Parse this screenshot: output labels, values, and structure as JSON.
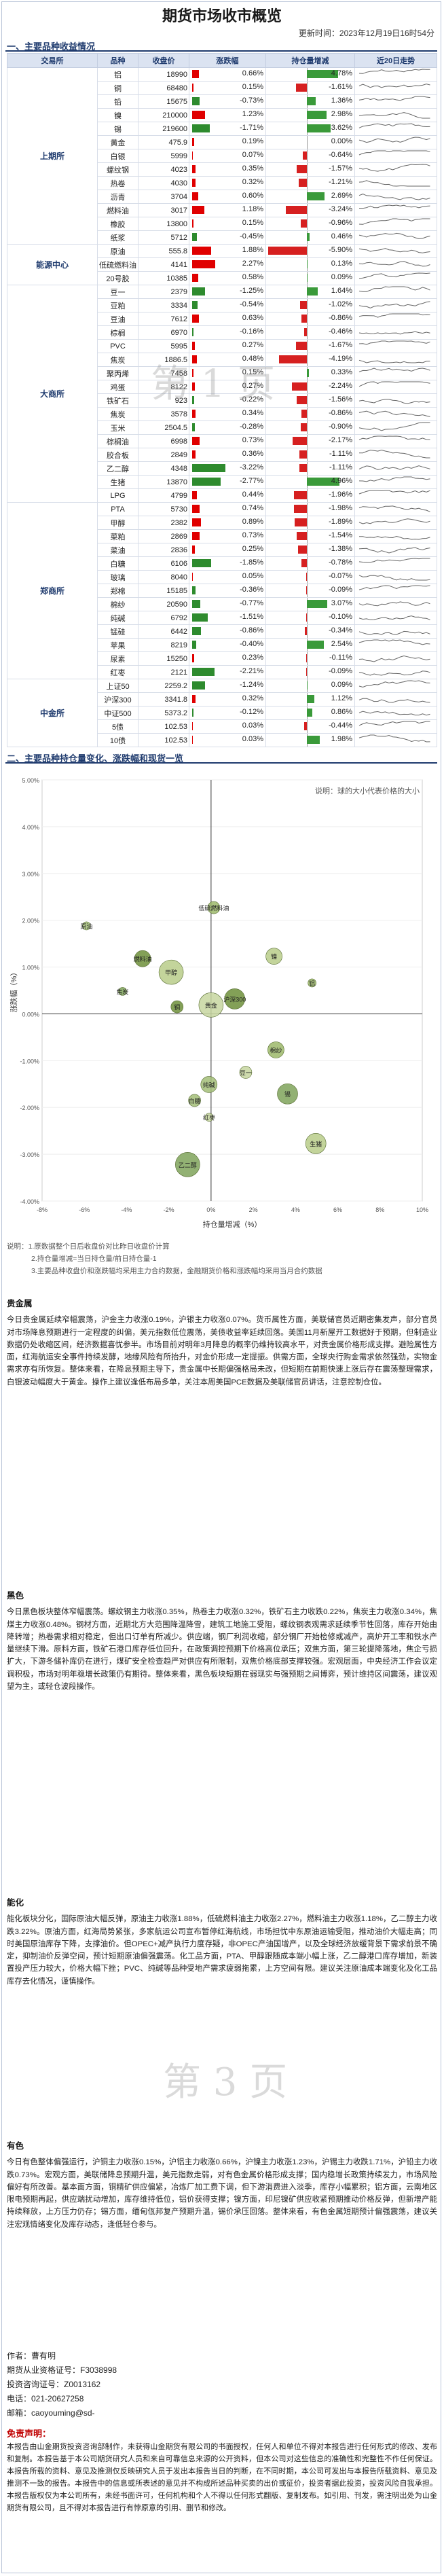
{
  "header": {
    "title": "期货市场收市概览",
    "update_time": "更新时间：2023年12月19日16时54分"
  },
  "section1": {
    "title": "一、主要品种收益情况"
  },
  "table": {
    "columns": [
      "交易所",
      "品种",
      "收盘价",
      "涨跌幅",
      "持仓量增减",
      "近20日走势"
    ],
    "groups": [
      {
        "exchange": "上期所",
        "rows": [
          {
            "name": "铝",
            "price": "18990",
            "change": 0.66,
            "change_label": "0.66%",
            "oi": 4.78,
            "oi_label": "4.78%"
          },
          {
            "name": "铜",
            "price": "68480",
            "change": 0.15,
            "change_label": "0.15%",
            "oi": -1.61,
            "oi_label": "-1.61%"
          },
          {
            "name": "铅",
            "price": "15675",
            "change": -0.73,
            "change_label": "-0.73%",
            "oi": 1.36,
            "oi_label": "1.36%"
          },
          {
            "name": "镍",
            "price": "210000",
            "change": 1.23,
            "change_label": "1.23%",
            "oi": 2.98,
            "oi_label": "2.98%"
          },
          {
            "name": "锡",
            "price": "219600",
            "change": -1.71,
            "change_label": "-1.71%",
            "oi": 3.62,
            "oi_label": "3.62%"
          },
          {
            "name": "黄金",
            "price": "475.9",
            "change": 0.19,
            "change_label": "0.19%",
            "oi": 0.0,
            "oi_label": "0.00%"
          },
          {
            "name": "白银",
            "price": "5999",
            "change": 0.07,
            "change_label": "0.07%",
            "oi": -0.64,
            "oi_label": "-0.64%"
          },
          {
            "name": "螺纹钢",
            "price": "4023",
            "change": 0.35,
            "change_label": "0.35%",
            "oi": -1.57,
            "oi_label": "-1.57%"
          },
          {
            "name": "热卷",
            "price": "4030",
            "change": 0.32,
            "change_label": "0.32%",
            "oi": -1.21,
            "oi_label": "-1.21%"
          },
          {
            "name": "沥青",
            "price": "3704",
            "change": 0.6,
            "change_label": "0.60%",
            "oi": 2.69,
            "oi_label": "2.69%"
          },
          {
            "name": "燃料油",
            "price": "3017",
            "change": 1.18,
            "change_label": "1.18%",
            "oi": -3.24,
            "oi_label": "-3.24%"
          },
          {
            "name": "橡胶",
            "price": "13800",
            "change": 0.15,
            "change_label": "0.15%",
            "oi": -0.96,
            "oi_label": "-0.96%"
          },
          {
            "name": "纸浆",
            "price": "5712",
            "change": -0.45,
            "change_label": "-0.45%",
            "oi": 0.46,
            "oi_label": "0.46%"
          }
        ]
      },
      {
        "exchange": "能源中心",
        "rows": [
          {
            "name": "原油",
            "price": "555.8",
            "change": 1.88,
            "change_label": "1.88%",
            "oi": -5.9,
            "oi_label": "-5.90%"
          },
          {
            "name": "低硫燃料油",
            "price": "4141",
            "change": 2.27,
            "change_label": "2.27%",
            "oi": 0.13,
            "oi_label": "0.13%"
          },
          {
            "name": "20号胶",
            "price": "10385",
            "change": 0.58,
            "change_label": "0.58%",
            "oi": 0.09,
            "oi_label": "0.09%"
          }
        ]
      },
      {
        "exchange": "大商所",
        "rows": [
          {
            "name": "豆一",
            "price": "2379",
            "change": -1.25,
            "change_label": "-1.25%",
            "oi": 1.64,
            "oi_label": "1.64%"
          },
          {
            "name": "豆粕",
            "price": "3334",
            "change": -0.54,
            "change_label": "-0.54%",
            "oi": -1.02,
            "oi_label": "-1.02%"
          },
          {
            "name": "豆油",
            "price": "7612",
            "change": 0.63,
            "change_label": "0.63%",
            "oi": -0.86,
            "oi_label": "-0.86%"
          },
          {
            "name": "棕榈",
            "price": "6970",
            "change": -0.16,
            "change_label": "-0.16%",
            "oi": -0.46,
            "oi_label": "-0.46%"
          },
          {
            "name": "PVC",
            "price": "5995",
            "change": 0.27,
            "change_label": "0.27%",
            "oi": -1.67,
            "oi_label": "-1.67%"
          },
          {
            "name": "焦炭",
            "price": "1886.5",
            "change": 0.48,
            "change_label": "0.48%",
            "oi": -4.19,
            "oi_label": "-4.19%"
          },
          {
            "name": "聚丙烯",
            "price": "7458",
            "change": 0.15,
            "change_label": "0.15%",
            "oi": 0.33,
            "oi_label": "0.33%"
          },
          {
            "name": "鸡蛋",
            "price": "8122",
            "change": 0.27,
            "change_label": "0.27%",
            "oi": -2.24,
            "oi_label": "-2.24%"
          },
          {
            "name": "铁矿石",
            "price": "923",
            "change": -0.22,
            "change_label": "-0.22%",
            "oi": -1.56,
            "oi_label": "-1.56%"
          },
          {
            "name": "焦炭",
            "price": "3578",
            "change": 0.34,
            "change_label": "0.34%",
            "oi": -0.86,
            "oi_label": "-0.86%"
          },
          {
            "name": "玉米",
            "price": "2504.5",
            "change": -0.28,
            "change_label": "-0.28%",
            "oi": -0.9,
            "oi_label": "-0.90%"
          },
          {
            "name": "棕榈油",
            "price": "6998",
            "change": 0.73,
            "change_label": "0.73%",
            "oi": -2.17,
            "oi_label": "-2.17%"
          },
          {
            "name": "胶合板",
            "price": "2849",
            "change": 0.36,
            "change_label": "0.36%",
            "oi": -1.11,
            "oi_label": "-1.11%"
          },
          {
            "name": "乙二醇",
            "price": "4348",
            "change": -3.22,
            "change_label": "-3.22%",
            "oi": -1.11,
            "oi_label": "-1.11%"
          },
          {
            "name": "生猪",
            "price": "13870",
            "change": -2.77,
            "change_label": "-2.77%",
            "oi": 4.96,
            "oi_label": "4.96%"
          },
          {
            "name": "LPG",
            "price": "4799",
            "change": 0.44,
            "change_label": "0.44%",
            "oi": -1.96,
            "oi_label": "-1.96%"
          }
        ]
      },
      {
        "exchange": "郑商所",
        "rows": [
          {
            "name": "PTA",
            "price": "5730",
            "change": 0.74,
            "change_label": "0.74%",
            "oi": -1.98,
            "oi_label": "-1.98%"
          },
          {
            "name": "甲醇",
            "price": "2382",
            "change": 0.89,
            "change_label": "0.89%",
            "oi": -1.89,
            "oi_label": "-1.89%"
          },
          {
            "name": "菜粕",
            "price": "2869",
            "change": 0.73,
            "change_label": "0.73%",
            "oi": -1.54,
            "oi_label": "-1.54%"
          },
          {
            "name": "菜油",
            "price": "2836",
            "change": 0.25,
            "change_label": "0.25%",
            "oi": -1.38,
            "oi_label": "-1.38%"
          },
          {
            "name": "白糖",
            "price": "6106",
            "change": -1.85,
            "change_label": "-1.85%",
            "oi": -0.78,
            "oi_label": "-0.78%"
          },
          {
            "name": "玻璃",
            "price": "8040",
            "change": 0.05,
            "change_label": "0.05%",
            "oi": -0.07,
            "oi_label": "-0.07%"
          },
          {
            "name": "郑棉",
            "price": "15185",
            "change": -0.36,
            "change_label": "-0.36%",
            "oi": -0.09,
            "oi_label": "-0.09%"
          },
          {
            "name": "棉纱",
            "price": "20590",
            "change": -0.77,
            "change_label": "-0.77%",
            "oi": 3.07,
            "oi_label": "3.07%"
          },
          {
            "name": "纯碱",
            "price": "6792",
            "change": -1.51,
            "change_label": "-1.51%",
            "oi": -0.1,
            "oi_label": "-0.10%"
          },
          {
            "name": "锰硅",
            "price": "6442",
            "change": -0.86,
            "change_label": "-0.86%",
            "oi": -0.34,
            "oi_label": "-0.34%"
          },
          {
            "name": "苹果",
            "price": "8219",
            "change": -0.4,
            "change_label": "-0.40%",
            "oi": 2.54,
            "oi_label": "2.54%"
          },
          {
            "name": "尿素",
            "price": "15250",
            "change": 0.23,
            "change_label": "0.23%",
            "oi": -0.11,
            "oi_label": "-0.11%"
          },
          {
            "name": "红枣",
            "price": "2121",
            "change": -2.21,
            "change_label": "-2.21%",
            "oi": -0.09,
            "oi_label": "-0.09%"
          }
        ]
      },
      {
        "exchange": "中金所",
        "rows": [
          {
            "name": "上证50",
            "price": "2259.2",
            "change": -1.24,
            "change_label": "-1.24%",
            "oi": 0.09,
            "oi_label": "0.09%"
          },
          {
            "name": "沪深300",
            "price": "3341.8",
            "change": 0.32,
            "change_label": "0.32%",
            "oi": 1.12,
            "oi_label": "1.12%"
          },
          {
            "name": "中证500",
            "price": "5373.2",
            "change": -0.12,
            "change_label": "-0.12%",
            "oi": 0.86,
            "oi_label": "0.86%"
          },
          {
            "name": "5债",
            "price": "102.53",
            "change": 0.03,
            "change_label": "0.03%",
            "oi": -0.44,
            "oi_label": "-0.44%"
          },
          {
            "name": "10债",
            "price": "102.53",
            "change": 0.03,
            "change_label": "0.03%",
            "oi": 1.98,
            "oi_label": "1.98%"
          }
        ]
      }
    ]
  },
  "section2": {
    "title": "二、主要品种持仓量变化、涨跌幅和现货一览"
  },
  "chart_data": {
    "type": "scatter",
    "xlabel": "持仓量增减（%）",
    "ylabel": "涨跌幅（%）",
    "legend_note": "说明：球的大小代表价格的大小",
    "xlim": [
      -8,
      10
    ],
    "ylim": [
      -4,
      5
    ],
    "xticks": [
      "-8%",
      "-6%",
      "-4%",
      "-2%",
      "0%",
      "2%",
      "4%",
      "6%",
      "8%",
      "10%"
    ],
    "yticks": [
      "-4.00%",
      "-3.00%",
      "-2.00%",
      "-1.00%",
      "0.00%",
      "1.00%",
      "2.00%",
      "3.00%",
      "4.00%",
      "5.00%"
    ],
    "points": [
      {
        "label": "铝",
        "x": 4.78,
        "y": 0.66
      },
      {
        "label": "铜",
        "x": -1.61,
        "y": 0.15
      },
      {
        "label": "镍",
        "x": 2.98,
        "y": 1.23
      },
      {
        "label": "锡",
        "x": 3.62,
        "y": -1.71
      },
      {
        "label": "黄金",
        "x": 0.0,
        "y": 0.19
      },
      {
        "label": "原油",
        "x": -5.9,
        "y": 1.88
      },
      {
        "label": "低硫燃料油",
        "x": 0.13,
        "y": 2.27
      },
      {
        "label": "燃料油",
        "x": -3.24,
        "y": 1.18
      },
      {
        "label": "生猪",
        "x": 4.96,
        "y": -2.77
      },
      {
        "label": "乙二醇",
        "x": -1.11,
        "y": -3.22
      },
      {
        "label": "红枣",
        "x": -0.09,
        "y": -2.21
      },
      {
        "label": "白糖",
        "x": -0.78,
        "y": -1.85
      },
      {
        "label": "棉纱",
        "x": 3.07,
        "y": -0.77
      },
      {
        "label": "沪深300",
        "x": 1.12,
        "y": 0.32
      },
      {
        "label": "甲醇",
        "x": -1.89,
        "y": 0.89
      },
      {
        "label": "焦炭",
        "x": -4.19,
        "y": 0.48
      },
      {
        "label": "豆一",
        "x": 1.64,
        "y": -1.25
      },
      {
        "label": "纯碱",
        "x": -0.1,
        "y": -1.51
      }
    ]
  },
  "notes": {
    "line1": "说明：1.原数据整个日后收盘价对比昨日收盘价计算",
    "line2": "2.持仓量增减=当日持仓量/前日持仓量-1",
    "line3": "3.主要品种收盘价和涨跌幅均采用主力合约数据，金融期货价格和涨跌幅均采用当月合约数据"
  },
  "precious": {
    "title": "贵金属",
    "body": "今日贵金属延续窄幅震荡，沪金主力收涨0.19%，沪银主力收涨0.07%。货币属性方面，美联储官员近期密集发声，部分官员对市场降息预期进行一定程度的纠偏，美元指数低位震荡，美债收益率延续回落。美国11月新屋开工数据好于预期，但制造业数据仍处收缩区间，经济数据喜忧参半。市场目前对明年3月降息的概率仍维持较高水平，对贵金属价格形成支撑。避险属性方面，红海航运安全事件持续发酵，地缘风险有所抬升，对金价形成一定提振。供需方面，全球央行购金需求依然强劲，实物金需求亦有所恢复。整体来看，在降息预期主导下，贵金属中长期偏强格局未改，但短期在前期快速上涨后存在震荡整理需求，白银波动幅度大于黄金。操作上建议逢低布局多单，关注本周美国PCE数据及美联储官员讲话，注意控制仓位。"
  },
  "black": {
    "title": "黑色",
    "body": "今日黑色板块整体窄幅震荡。螺纹钢主力收涨0.35%，热卷主力收涨0.32%，铁矿石主力收跌0.22%，焦炭主力收涨0.34%，焦煤主力收涨0.48%。钢材方面，近期北方大范围降温降雪，建筑工地施工受阻，螺纹钢表观需求延续季节性回落，库存开始由降转增；热卷需求相对稳定，但出口订单有所减少。供应端，钢厂利润收缩，部分钢厂开始检修或减产，高炉开工率和铁水产量继续下滑。原料方面，铁矿石港口库存低位回升，在政策调控预期下价格高位承压；双焦方面，第三轮提降落地，焦企亏损扩大，下游冬储补库仍在进行，煤矿安全检查趋严对供应有所限制，双焦价格底部支撑较强。宏观层面，中央经济工作会议定调积极，市场对明年稳增长政策仍有期待。整体来看，黑色板块短期在弱现实与强预期之间博弈，预计维持区间震荡，建议观望为主，或轻仓波段操作。"
  },
  "energy": {
    "title": "能化",
    "body": "能化板块分化，国际原油大幅反弹，原油主力收涨1.88%，低硫燃料油主力收涨2.27%，燃料油主力收涨1.18%，乙二醇主力收跌3.22%。原油方面，红海局势紧张，多家航运公司宣布暂停红海航线，市场担忧中东原油运输受阻，推动油价大幅走高；同时美国原油库存下降，支撑油价。但OPEC+减产执行力度存疑，非OPEC产油国增产，以及全球经济放缓背景下需求前景不确定，抑制油价反弹空间，预计短期原油偏强震荡。化工品方面，PTA、甲醇跟随成本端小幅上涨，乙二醇港口库存增加，新装置投产压力较大，价格大幅下挫；PVC、纯碱等品种受地产需求疲弱拖累，上方空间有限。建议关注原油成本端变化及化工品库存去化情况，谨慎操作。"
  },
  "nonferrous": {
    "title": "有色",
    "body": "今日有色整体偏强运行，沪铜主力收涨0.15%，沪铝主力收涨0.66%，沪镍主力收涨1.23%，沪锡主力收跌1.71%，沪铅主力收跌0.73%。宏观方面，美联储降息预期升温，美元指数走弱，对有色金属价格形成支撑；国内稳增长政策持续发力，市场风险偏好有所改善。基本面方面，铜精矿供应偏紧，冶炼厂加工费下调，但下游消费进入淡季，库存小幅累积；铝方面，云南地区限电预期再起，供应端扰动增加，库存维持低位，铝价获得支撑；镍方面，印尼镍矿供应收紧预期推动价格反弹，但新增产能持续释放，上方压力仍存；锡方面，缅甸佤邦复产预期升温，锡价承压回落。整体来看，有色金属短期预计偏强震荡，建议关注宏观情绪变化及库存动态，逢低轻仓参与。"
  },
  "contact": {
    "author": "作者：曹有明",
    "qual": "期货从业资格证号：F3038998",
    "inv": "投资咨询证号：Z0013162",
    "tel": "电话：021-20627258",
    "mail": "邮箱：caoyouming@sd-"
  },
  "disclaimer": {
    "title": "免责声明：",
    "body": "本报告由山金期货投资咨询部制作，未获得山金期货有限公司的书面授权，任何人和单位不得对本报告进行任何形式的修改、发布和复制。本报告基于本公司期货研究人员和来自可靠信息来源的公开资料，但本公司对这些信息的准确性和完整性不作任何保证。本报告所载的资料、意见及推测仅反映研究人员于发出本报告当日的判断，在不同时期，本公司可发出与本报告所载资料、意见及推测不一致的报告。本报告中的信息或所表述的意见并不构成所述品种买卖的出价或征价，投资者据此投资，投资风险自我承担。本报告版权仅为本公司所有，未经书面许可，任何机构和个人不得以任何形式翻版、复制发布。如引用、刊发，需注明出处为山金期货有限公司，且不得对本报告进行有悖原意的引用、删节和修改。"
  },
  "watermarks": {
    "p1": "第 1 页",
    "p3": "第 3 页"
  },
  "colors": {
    "accent": "#1f3b6e",
    "up_bar": "#e00000",
    "down_bar": "#2e8b2e",
    "oi_up": "#e00000",
    "oi_down": "#2e8b2e"
  }
}
